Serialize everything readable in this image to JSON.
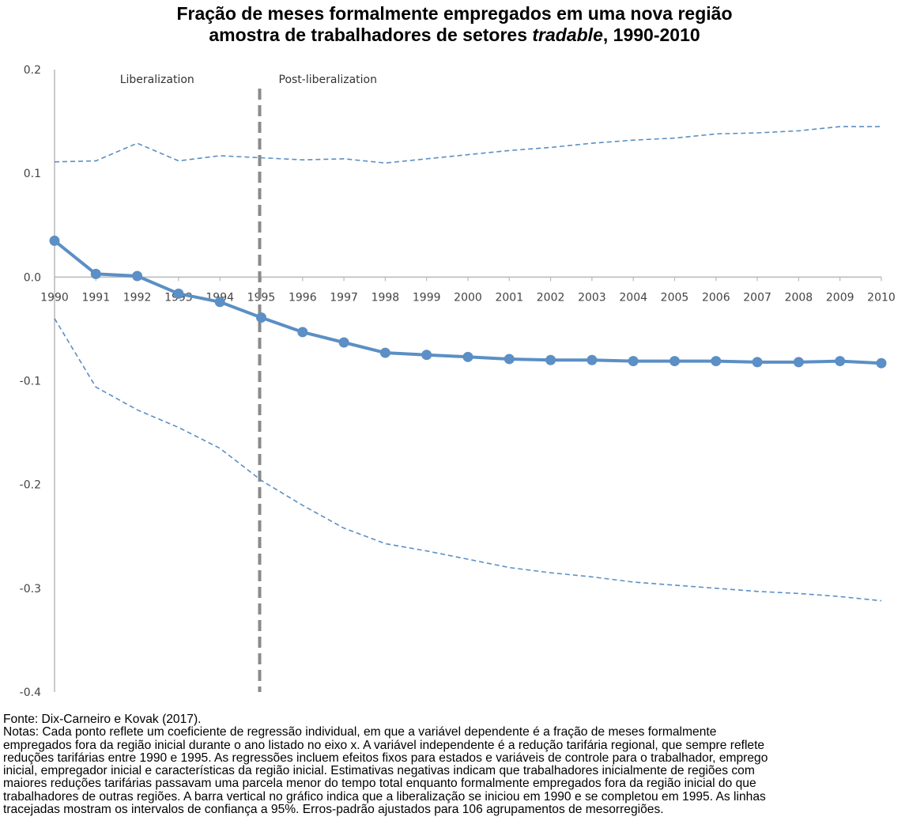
{
  "title": {
    "line1": "Fração de meses formalmente empregados em uma nova região",
    "line2_pre": "amostra de trabalhadores de setores ",
    "line2_italic": "tradable",
    "line2_post": ", 1990-2010"
  },
  "chart_data": {
    "type": "line",
    "title": "Fração de meses formalmente empregados em uma nova região amostra de trabalhadores de setores tradable, 1990-2010",
    "xlabel": "",
    "ylabel": "",
    "x": [
      1990,
      1991,
      1992,
      1993,
      1994,
      1995,
      1996,
      1997,
      1998,
      1999,
      2000,
      2001,
      2002,
      2003,
      2004,
      2005,
      2006,
      2007,
      2008,
      2009,
      2010
    ],
    "ylim": [
      -0.4,
      0.2
    ],
    "yticks": [
      0.2,
      0.1,
      0.0,
      -0.1,
      -0.2,
      -0.3,
      -0.4
    ],
    "ytick_labels": [
      "0.2",
      "0.1",
      "0.0",
      "-0.1",
      "-0.2",
      "-0.3",
      "-0.4"
    ],
    "grid": false,
    "series": [
      {
        "role": "estimate",
        "style": "solid-with-markers",
        "color": "#5b8fc5",
        "values": [
          0.035,
          0.003,
          0.001,
          -0.016,
          -0.024,
          -0.039,
          -0.053,
          -0.063,
          -0.073,
          -0.075,
          -0.077,
          -0.079,
          -0.08,
          -0.08,
          -0.081,
          -0.081,
          -0.081,
          -0.082,
          -0.082,
          -0.081,
          -0.083
        ]
      },
      {
        "role": "upper-95",
        "style": "dashed",
        "color": "#5b8fc5",
        "values": [
          0.111,
          0.112,
          0.129,
          0.112,
          0.117,
          0.115,
          0.113,
          0.114,
          0.11,
          0.114,
          0.118,
          0.122,
          0.125,
          0.129,
          0.132,
          0.134,
          0.138,
          0.139,
          0.141,
          0.145,
          0.145
        ]
      },
      {
        "role": "lower-95",
        "style": "dashed",
        "color": "#5b8fc5",
        "values": [
          -0.04,
          -0.106,
          -0.128,
          -0.145,
          -0.165,
          -0.196,
          -0.22,
          -0.242,
          -0.257,
          -0.264,
          -0.272,
          -0.28,
          -0.285,
          -0.289,
          -0.294,
          -0.297,
          -0.3,
          -0.303,
          -0.305,
          -0.308,
          -0.312
        ]
      }
    ],
    "vertical_marker": {
      "x": 1995,
      "style": "dashed",
      "color": "#8a8a8a"
    },
    "region_labels": [
      "Liberalization",
      "Post-liberalization"
    ]
  },
  "notes": {
    "source": "Fonte: Dix-Carneiro e Kovak (2017).",
    "lines": [
      "Notas: Cada ponto reflete um coeficiente de regressão individual, em que a variável dependente é a fração de meses formalmente",
      "empregados fora da região inicial durante o ano listado no eixo x. A variável independente é a redução tarifária regional, que sempre reflete",
      "reduções tarifárias entre 1990 e 1995. As regressões incluem efeitos fixos para estados e variáveis de controle para o trabalhador, emprego",
      "inicial, empregador inicial e características da região inicial. Estimativas negativas indicam que trabalhadores inicialmente de regiões com",
      "maiores reduções tarifárias passavam uma parcela menor do tempo total enquanto formalmente empregados fora da região inicial do que",
      "trabalhadores de outras regiões. A barra vertical no gráfico indica que a liberalização se iniciou em 1990 e se completou em 1995. As linhas",
      "tracejadas mostram os intervalos de confiança a 95%. Erros-padrão ajustados para 106 agrupamentos de mesorregiões."
    ]
  }
}
